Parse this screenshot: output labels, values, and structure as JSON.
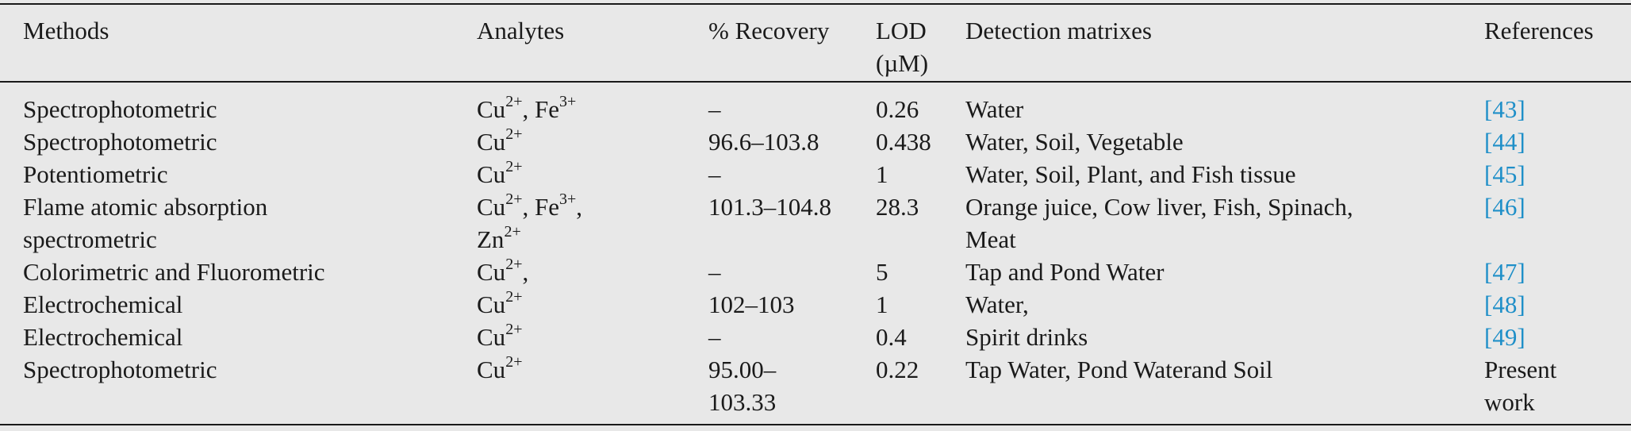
{
  "headers": {
    "methods": "Methods",
    "analytes": "Analytes",
    "recovery": "% Recovery",
    "lod_line1": "LOD",
    "lod_line2": "(µM)",
    "matrix": "Detection matrixes",
    "references": "References"
  },
  "rows": [
    {
      "method": [
        "Spectrophotometric"
      ],
      "analytes": [
        [
          {
            "t": "Cu"
          },
          {
            "s": "2+"
          },
          {
            "t": ", Fe"
          },
          {
            "s": "3+"
          }
        ]
      ],
      "recovery": [
        "–"
      ],
      "lod": [
        "0.26"
      ],
      "matrix": [
        "Water"
      ],
      "ref": [
        "[43]"
      ],
      "ref_link": true
    },
    {
      "method": [
        "Spectrophotometric"
      ],
      "analytes": [
        [
          {
            "t": "Cu"
          },
          {
            "s": "2+"
          }
        ]
      ],
      "recovery": [
        "96.6–103.8"
      ],
      "lod": [
        "0.438"
      ],
      "matrix": [
        "Water, Soil, Vegetable"
      ],
      "ref": [
        "[44]"
      ],
      "ref_link": true
    },
    {
      "method": [
        "Potentiometric"
      ],
      "analytes": [
        [
          {
            "t": "Cu"
          },
          {
            "s": "2+"
          }
        ]
      ],
      "recovery": [
        "–"
      ],
      "lod": [
        "1"
      ],
      "matrix": [
        "Water, Soil, Plant, and Fish tissue"
      ],
      "ref": [
        "[45]"
      ],
      "ref_link": true
    },
    {
      "method": [
        "Flame atomic absorption",
        "spectrometric"
      ],
      "analytes": [
        [
          {
            "t": "Cu"
          },
          {
            "s": "2+"
          },
          {
            "t": ", Fe"
          },
          {
            "s": "3+"
          },
          {
            "t": ","
          }
        ],
        [
          {
            "t": "Zn"
          },
          {
            "s": "2+"
          }
        ]
      ],
      "recovery": [
        "101.3–104.8"
      ],
      "lod": [
        "28.3"
      ],
      "matrix": [
        "Orange juice, Cow liver, Fish, Spinach,",
        "Meat"
      ],
      "ref": [
        "[46]"
      ],
      "ref_link": true
    },
    {
      "method": [
        "Colorimetric and Fluorometric"
      ],
      "analytes": [
        [
          {
            "t": "Cu"
          },
          {
            "s": "2+"
          },
          {
            "t": ","
          }
        ]
      ],
      "recovery": [
        "–"
      ],
      "lod": [
        "5"
      ],
      "matrix": [
        "Tap and Pond Water"
      ],
      "ref": [
        "[47]"
      ],
      "ref_link": true
    },
    {
      "method": [
        "Electrochemical"
      ],
      "analytes": [
        [
          {
            "t": "Cu"
          },
          {
            "s": "2+"
          }
        ]
      ],
      "recovery": [
        "102–103"
      ],
      "lod": [
        "1"
      ],
      "matrix": [
        "Water,"
      ],
      "ref": [
        "[48]"
      ],
      "ref_link": true
    },
    {
      "method": [
        "Electrochemical"
      ],
      "analytes": [
        [
          {
            "t": "Cu"
          },
          {
            "s": "2+"
          }
        ]
      ],
      "recovery": [
        "–"
      ],
      "lod": [
        "0.4"
      ],
      "matrix": [
        "Spirit drinks"
      ],
      "ref": [
        "[49]"
      ],
      "ref_link": true
    },
    {
      "method": [
        "Spectrophotometric"
      ],
      "analytes": [
        [
          {
            "t": "Cu"
          },
          {
            "s": "2+"
          }
        ]
      ],
      "recovery": [
        "95.00–",
        "103.33"
      ],
      "lod": [
        "0.22"
      ],
      "matrix": [
        "Tap Water, Pond Waterand Soil"
      ],
      "ref": [
        "Present",
        "work"
      ],
      "ref_link": false
    }
  ]
}
